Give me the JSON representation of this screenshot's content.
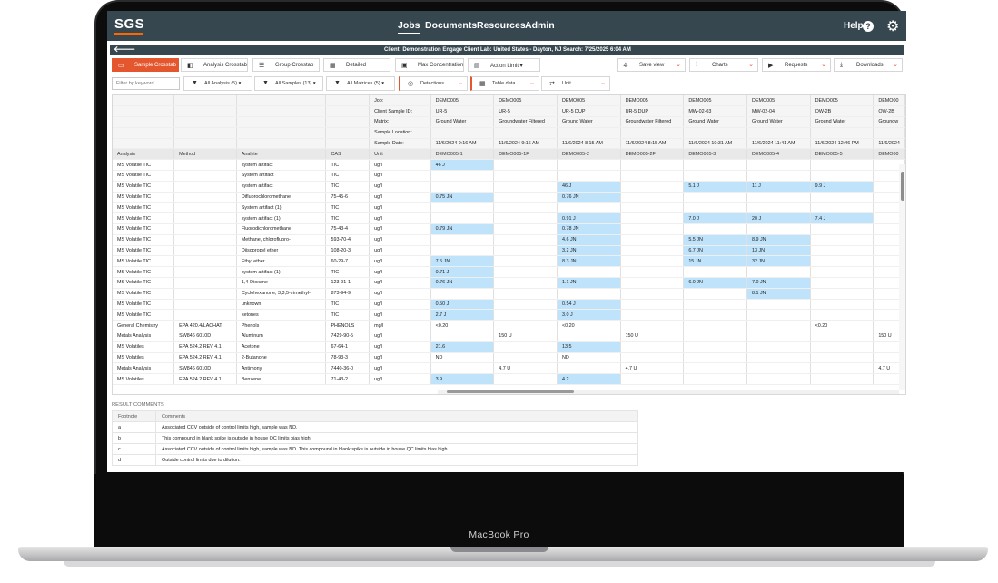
{
  "nav": {
    "logo": "SGS",
    "items": [
      "Jobs",
      "Documents",
      "Resources",
      "Admin"
    ],
    "help": "Help",
    "help_icon": "?"
  },
  "info": {
    "text": "Client: Demonstration Engage Client      Lab: United States - Dayton, NJ      Search: 7/25/2025 6:04 AM"
  },
  "toolbar": {
    "tabs": [
      "Sample Crosstab",
      "Analysis Crosstab",
      "Group Crosstab",
      "Detailed",
      "Max Concentration",
      "Action Limit ▾"
    ],
    "right": [
      "Save view",
      "Charts",
      "Requests",
      "Downloads"
    ]
  },
  "filters": {
    "placeholder": "Filter by keyword...",
    "selects": [
      "All Analysis (5) ▾",
      "All Samples (13) ▾",
      "All Matrices (5) ▾",
      "Detections",
      "Table data",
      "Unit"
    ]
  },
  "grid": {
    "header_labels": [
      "Job:",
      "Client Sample ID:",
      "Matrix:",
      "Sample Location:",
      "Sample Date:"
    ],
    "column_headers": [
      "Analysis",
      "Method",
      "Analyte",
      "CAS",
      "Unit"
    ],
    "samples": [
      {
        "job": "DEMO005",
        "id": "UR-5",
        "matrix": "Ground Water",
        "date": "11/6/2024 9:16 AM",
        "name": "DEMO005-1"
      },
      {
        "job": "DEMO005",
        "id": "UR-5",
        "matrix": "Groundwater Filtered",
        "date": "11/6/2024 9:16 AM",
        "name": "DEMO005-1F"
      },
      {
        "job": "DEMO005",
        "id": "UR-5 DUP",
        "matrix": "Ground Water",
        "date": "11/6/2024 8:15 AM",
        "name": "DEMO005-2"
      },
      {
        "job": "DEMO005",
        "id": "UR-5 DUP",
        "matrix": "Groundwater Filtered",
        "date": "11/6/2024 8:15 AM",
        "name": "DEMO005-2F"
      },
      {
        "job": "DEMO005",
        "id": "MW-02-03",
        "matrix": "Ground Water",
        "date": "11/6/2024 10:31 AM",
        "name": "DEMO005-3"
      },
      {
        "job": "DEMO005",
        "id": "MW-02-04",
        "matrix": "Ground Water",
        "date": "11/6/2024 11:41 AM",
        "name": "DEMO005-4"
      },
      {
        "job": "DEMO005",
        "id": "OW-2B",
        "matrix": "Ground Water",
        "date": "11/6/2024 12:46 PM",
        "name": "DEMO005-5"
      },
      {
        "job": "DEMO00",
        "id": "OW-2B",
        "matrix": "Groundw",
        "date": "11/6/2024",
        "name": "DEMO00"
      }
    ],
    "rows": [
      [
        "MS Volatile TIC",
        "",
        "system artifact",
        "TIC",
        "ug/l",
        "46 J",
        "",
        "",
        "",
        "",
        "",
        "",
        ""
      ],
      [
        "MS Volatile TIC",
        "",
        "System artifact",
        "TIC",
        "ug/l",
        "",
        "",
        "",
        "",
        "",
        "",
        "",
        ""
      ],
      [
        "MS Volatile TIC",
        "",
        "system artifact",
        "TIC",
        "ug/l",
        "",
        "",
        "46 J",
        "",
        "5.1 J",
        "11 J",
        "9.9 J",
        ""
      ],
      [
        "MS Volatile TIC",
        "",
        "Difluorochloromethane",
        "75-45-6",
        "ug/l",
        "0.75 JN",
        "",
        "0.76 JN",
        "",
        "",
        "",
        "",
        ""
      ],
      [
        "MS Volatile TIC",
        "",
        "System artifact (1)",
        "TIC",
        "ug/l",
        "",
        "",
        "",
        "",
        "",
        "",
        "",
        ""
      ],
      [
        "MS Volatile TIC",
        "",
        "system artifact (1)",
        "TIC",
        "ug/l",
        "",
        "",
        "0.91 J",
        "",
        "7.0 J",
        "20 J",
        "7.4 J",
        ""
      ],
      [
        "MS Volatile TIC",
        "",
        "Fluorodichloromethane",
        "75-43-4",
        "ug/l",
        "0.79 JN",
        "",
        "0.78 JN",
        "",
        "",
        "",
        "",
        ""
      ],
      [
        "MS Volatile TIC",
        "",
        "Methane, chlorofluoro-",
        "593-70-4",
        "ug/l",
        "",
        "",
        "4.6 JN",
        "",
        "5.5 JN",
        "8.9 JN",
        "",
        ""
      ],
      [
        "MS Volatile TIC",
        "",
        "Diisopropyl ether",
        "108-20-3",
        "ug/l",
        "",
        "",
        "3.2 JN",
        "",
        "6.7 JN",
        "13 JN",
        "",
        ""
      ],
      [
        "MS Volatile TIC",
        "",
        "Ethyl ether",
        "60-29-7",
        "ug/l",
        "7.5 JN",
        "",
        "8.3 JN",
        "",
        "15 JN",
        "32 JN",
        "",
        ""
      ],
      [
        "MS Volatile TIC",
        "",
        "system artifact (1)",
        "TIC",
        "ug/l",
        "0.71 J",
        "",
        "",
        "",
        "",
        "",
        "",
        ""
      ],
      [
        "MS Volatile TIC",
        "",
        "1,4-Dioxane",
        "123-91-1",
        "ug/l",
        "0.76 JN",
        "",
        "1.1 JN",
        "",
        "6.0 JN",
        "7.0 JN",
        "",
        ""
      ],
      [
        "MS Volatile TIC",
        "",
        "Cyclohexanone, 3,3,5-trimethyl-",
        "873-94-9",
        "ug/l",
        "",
        "",
        "",
        "",
        "",
        "8.1 JN",
        "",
        ""
      ],
      [
        "MS Volatile TIC",
        "",
        "unknown",
        "TIC",
        "ug/l",
        "0.50 J",
        "",
        "0.54 J",
        "",
        "",
        "",
        "",
        ""
      ],
      [
        "MS Volatile TIC",
        "",
        "ketones",
        "TIC",
        "ug/l",
        "2.7 J",
        "",
        "3.0 J",
        "",
        "",
        "",
        "",
        ""
      ],
      [
        "General Chemistry",
        "EPA 420.4/LACHAT",
        "Phenols",
        "PHENOLS",
        "mg/l",
        "<0.20",
        "",
        "<0.20",
        "",
        "",
        "",
        "<0.20",
        ""
      ],
      [
        "Metals Analysis",
        "SW846 6010D",
        "Aluminum",
        "7429-90-5",
        "ug/l",
        "",
        "150 U",
        "",
        "150 U",
        "",
        "",
        "",
        "150 U"
      ],
      [
        "MS Volatiles",
        "EPA 524.2 REV 4.1",
        "Acetone",
        "67-64-1",
        "ug/l",
        "21.6",
        "",
        "13.5",
        "",
        "",
        "",
        "",
        ""
      ],
      [
        "MS Volatiles",
        "EPA 524.2 REV 4.1",
        "2-Butanone",
        "78-93-3",
        "ug/l",
        "ND",
        "",
        "ND",
        "",
        "",
        "",
        "",
        ""
      ],
      [
        "Metals Analysis",
        "SW846 6010D",
        "Antimony",
        "7440-36-0",
        "ug/l",
        "",
        "4.7 U",
        "",
        "4.7 U",
        "",
        "",
        "",
        "4.7 U"
      ],
      [
        "MS Volatiles",
        "EPA 524.2 REV 4.1",
        "Benzene",
        "71-43-2",
        "ug/l",
        "3.9",
        "",
        "4.2",
        "",
        "",
        "",
        "",
        ""
      ]
    ],
    "highlight": [
      [
        0,
        0
      ],
      [
        2,
        2
      ],
      [
        2,
        4
      ],
      [
        2,
        5
      ],
      [
        2,
        6
      ],
      [
        3,
        0
      ],
      [
        3,
        2
      ],
      [
        5,
        2
      ],
      [
        5,
        4
      ],
      [
        5,
        5
      ],
      [
        5,
        6
      ],
      [
        6,
        0
      ],
      [
        6,
        2
      ],
      [
        7,
        2
      ],
      [
        7,
        4
      ],
      [
        7,
        5
      ],
      [
        8,
        2
      ],
      [
        8,
        4
      ],
      [
        8,
        5
      ],
      [
        9,
        0
      ],
      [
        9,
        2
      ],
      [
        9,
        4
      ],
      [
        9,
        5
      ],
      [
        10,
        0
      ],
      [
        11,
        0
      ],
      [
        11,
        2
      ],
      [
        11,
        4
      ],
      [
        11,
        5
      ],
      [
        12,
        5
      ],
      [
        13,
        0
      ],
      [
        13,
        2
      ],
      [
        14,
        0
      ],
      [
        14,
        2
      ],
      [
        17,
        0
      ],
      [
        17,
        2
      ],
      [
        20,
        0
      ],
      [
        20,
        2
      ]
    ]
  },
  "comments": {
    "title": "RESULT COMMENTS",
    "headers": [
      "Footnote",
      "Comments"
    ],
    "rows": [
      [
        "a",
        "Associated CCV outside of control limits high, sample was ND."
      ],
      [
        "b",
        "This compound in blank spike is outside in house QC limits bias high."
      ],
      [
        "c",
        "Associated CCV outside of control limits high, sample was ND. This compound in blank spike is outside in house QC limits bias high."
      ],
      [
        "d",
        "Outside control limits due to dilution."
      ]
    ]
  },
  "device": {
    "label": "MacBook Pro"
  },
  "colors": {
    "nav": "#37474f",
    "accent": "#e4572e",
    "highlight": "#bfe3fb"
  }
}
